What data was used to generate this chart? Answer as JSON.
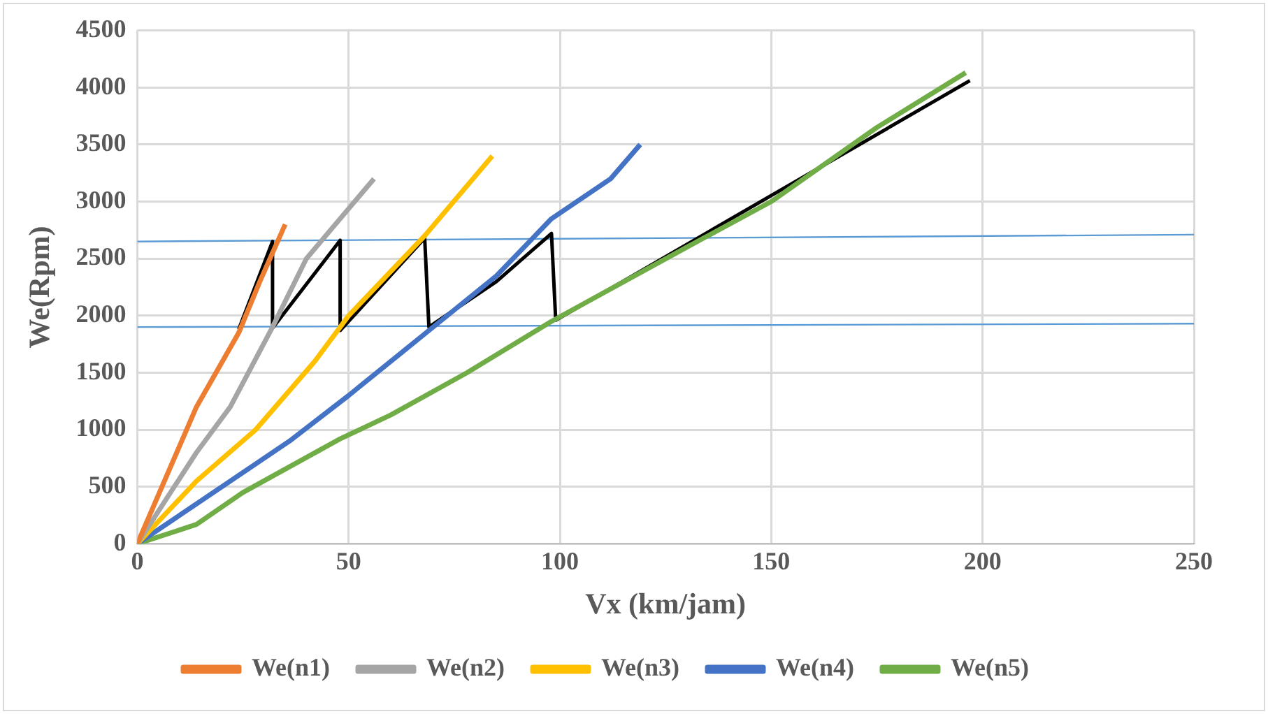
{
  "chart_data": {
    "type": "line",
    "xlabel": "Vx (km/jam)",
    "ylabel": "We(Rpm)",
    "xlim": [
      0,
      250
    ],
    "xticks": [
      0,
      50,
      100,
      150,
      200,
      250
    ],
    "ylim": [
      0,
      4500
    ],
    "yticks": [
      0,
      500,
      1000,
      1500,
      2000,
      2500,
      3000,
      3500,
      4000,
      4500
    ],
    "grid": true,
    "legend": "bottom",
    "marker": "none",
    "line_style": "solid",
    "series": [
      {
        "name": "We(n1)",
        "color": "#ed7d31",
        "x": [
          0,
          14,
          24,
          29,
          35
        ],
        "values": [
          0,
          1200,
          1850,
          2300,
          2800
        ]
      },
      {
        "name": "We(n2)",
        "color": "#a5a5a5",
        "x": [
          0,
          14,
          22,
          32,
          40,
          56
        ],
        "values": [
          0,
          800,
          1200,
          1900,
          2500,
          3200
        ]
      },
      {
        "name": "We(n3)",
        "color": "#ffc000",
        "x": [
          0,
          14,
          28,
          42,
          50,
          68,
          84
        ],
        "values": [
          0,
          550,
          1000,
          1600,
          2000,
          2700,
          3400
        ]
      },
      {
        "name": "We(n4)",
        "color": "#4472c4",
        "x": [
          0,
          22,
          36,
          50,
          70,
          85,
          98,
          112,
          119
        ],
        "values": [
          0,
          550,
          900,
          1300,
          1900,
          2350,
          2850,
          3200,
          3500
        ]
      },
      {
        "name": "We(n5)",
        "color": "#70ad47",
        "x": [
          0,
          14,
          25,
          48,
          60,
          78,
          98,
          130,
          150,
          175,
          196
        ],
        "values": [
          0,
          170,
          450,
          920,
          1130,
          1500,
          1950,
          2600,
          3000,
          3650,
          4130
        ]
      },
      {
        "color": "#000000",
        "x": [
          24,
          32,
          32,
          48,
          48,
          68,
          69,
          85,
          98,
          99,
          197
        ],
        "values": [
          1880,
          2650,
          1890,
          2660,
          1870,
          2680,
          1900,
          2300,
          2720,
          1960,
          4060
        ]
      },
      {
        "color": "#5b9bd5",
        "x": [
          0,
          250
        ],
        "values": [
          1900,
          1930
        ]
      },
      {
        "color": "#5b9bd5",
        "x": [
          0,
          250
        ],
        "values": [
          2650,
          2710
        ]
      }
    ]
  }
}
